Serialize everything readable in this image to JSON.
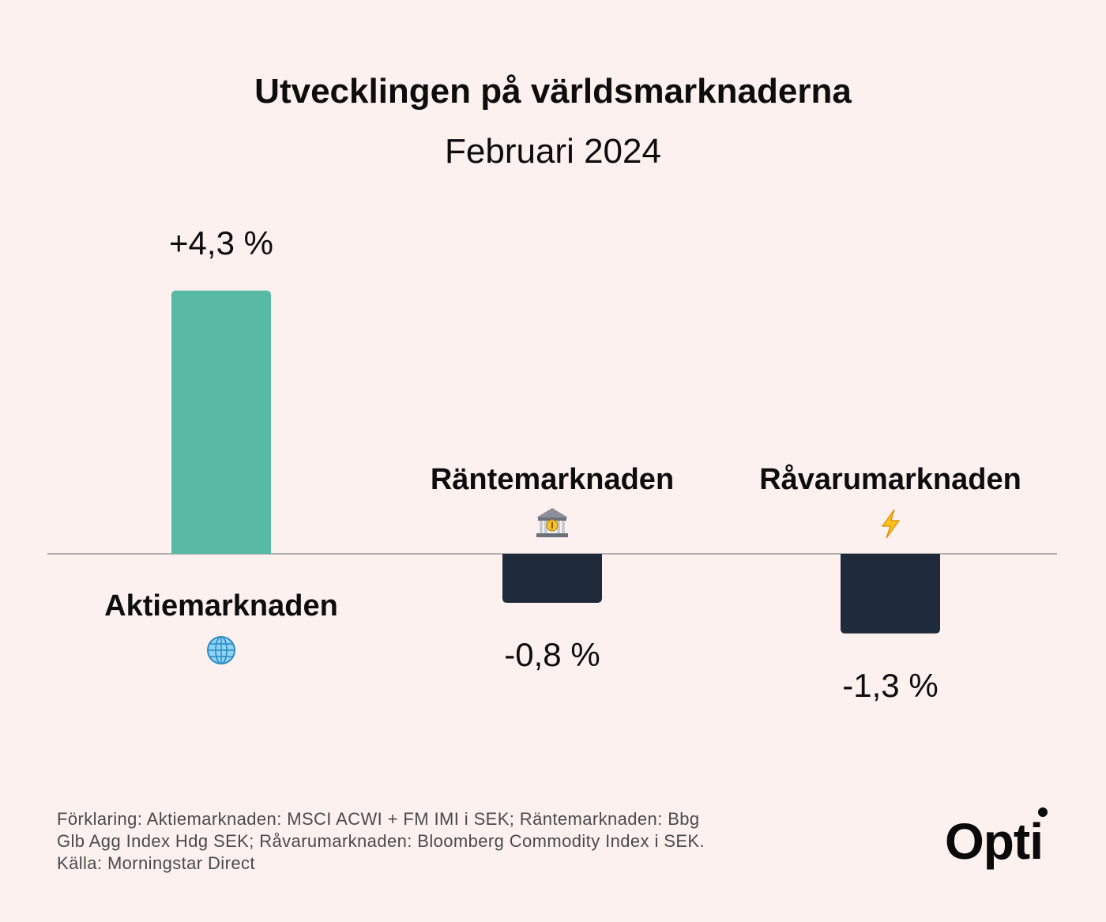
{
  "chart_data": {
    "type": "bar",
    "title": "Utvecklingen på världsmarknaderna",
    "subtitle": "Februari 2024",
    "categories": [
      "Aktiemarknaden",
      "Räntemarknaden",
      "Råvarumarknaden"
    ],
    "icons": [
      "globe-icon",
      "bank-icon",
      "lightning-icon"
    ],
    "values": [
      4.3,
      -0.8,
      -1.3
    ],
    "value_labels": [
      "+4,3 %",
      "-0,8 %",
      "-1,3 %"
    ],
    "colors": [
      "#58b9a5",
      "#1f2a3a",
      "#1f2a3a"
    ],
    "ylim": [
      -5.5,
      5
    ],
    "grid": false,
    "baseline": 0
  },
  "footnote": {
    "lines": [
      "Förklaring: Aktiemarknaden: MSCI ACWI + FM IMI i SEK; Räntemarknaden: Bbg",
      "Glb Agg Index Hdg SEK; Råvarumarknaden: Bloomberg Commodity Index i SEK.",
      "Källa: Morningstar Direct"
    ]
  },
  "logo": {
    "text": "Opti"
  }
}
